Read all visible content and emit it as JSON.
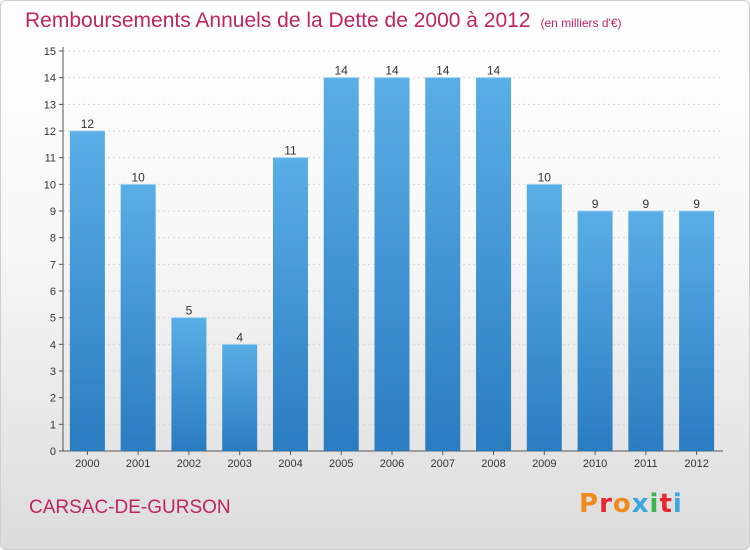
{
  "title": "Remboursements Annuels de la Dette de 2000 à 2012",
  "unit": "(en milliers d'€)",
  "city": "CARSAC-DE-GURSON",
  "brand": "Proxiti",
  "colors": {
    "title": "#c0255f",
    "bar_top": "#5aaee6",
    "bar_bottom": "#2a7cc0",
    "brand": [
      "#f08a1c",
      "#e8262e",
      "#f08a1c",
      "#3aa7e0",
      "#3bb44a",
      "#e8262e",
      "#3aa7e0"
    ]
  },
  "chart_data": {
    "type": "bar",
    "categories": [
      "2000",
      "2001",
      "2002",
      "2003",
      "2004",
      "2005",
      "2006",
      "2007",
      "2008",
      "2009",
      "2010",
      "2011",
      "2012"
    ],
    "values": [
      12,
      10,
      5,
      4,
      11,
      14,
      14,
      14,
      14,
      10,
      9,
      9,
      9
    ],
    "ylim": [
      0,
      15
    ],
    "yticks": [
      0,
      1,
      2,
      3,
      4,
      5,
      6,
      7,
      8,
      9,
      10,
      11,
      12,
      13,
      14,
      15
    ],
    "grid": true
  }
}
